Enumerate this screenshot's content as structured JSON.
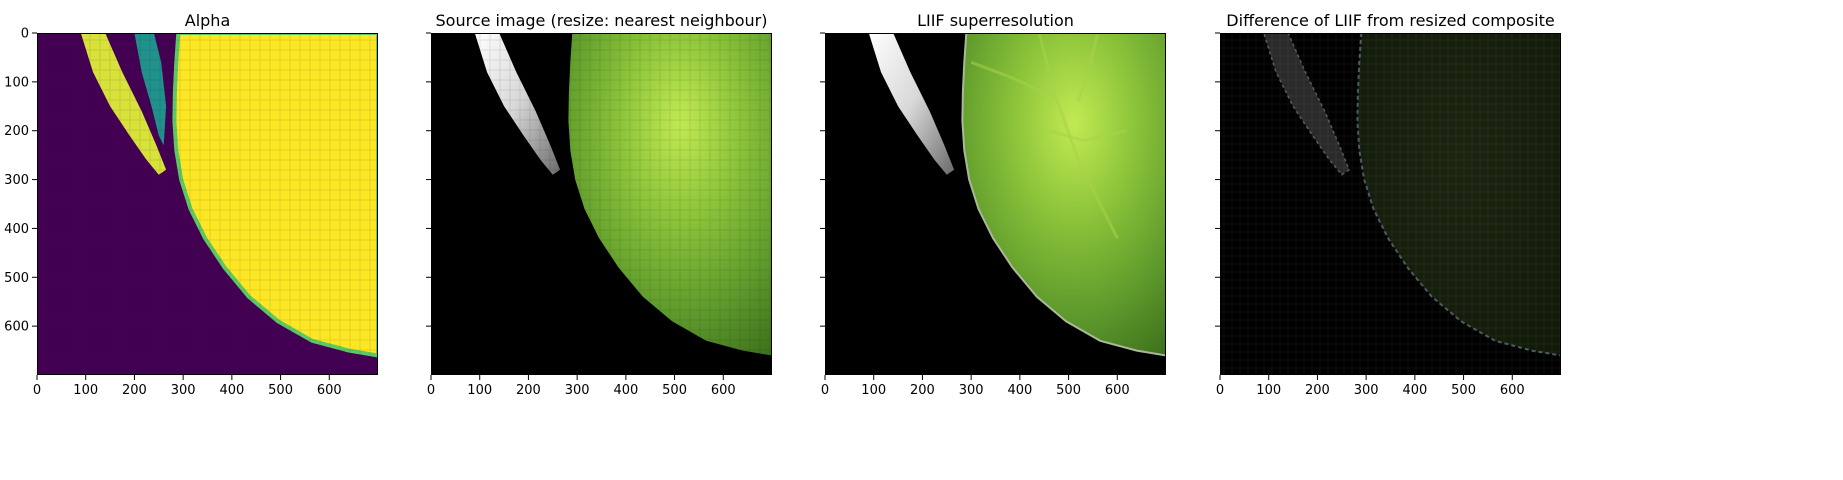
{
  "figure": {
    "panels": [
      {
        "title": "Alpha",
        "content": "alpha-mask",
        "show_y_labels": true
      },
      {
        "title": "Source image (resize: nearest neighbour)",
        "content": "source-nearest",
        "show_y_labels": false
      },
      {
        "title": "LIIF superresolution",
        "content": "liif-smooth",
        "show_y_labels": false
      },
      {
        "title": "Difference of LIIF from resized composite",
        "content": "difference",
        "show_y_labels": false
      }
    ]
  },
  "chart_data": {
    "type": "heatmap",
    "image_extent": {
      "x": [
        0,
        700
      ],
      "y": [
        700,
        0
      ]
    },
    "x_ticks": [
      0,
      100,
      200,
      300,
      400,
      500,
      600
    ],
    "y_ticks": [
      0,
      100,
      200,
      300,
      400,
      500,
      600
    ],
    "colormap": "viridis",
    "colors": {
      "alpha_low": "#440154",
      "alpha_high": "#fde725",
      "alpha_mid": "#21918c",
      "leaf_light": "#b8e04a",
      "leaf_mid": "#6aa82a",
      "leaf_dark": "#2f5a12",
      "petal_light": "#f2f2f2",
      "petal_dark": "#9a9a9a",
      "background": "#000000"
    }
  }
}
